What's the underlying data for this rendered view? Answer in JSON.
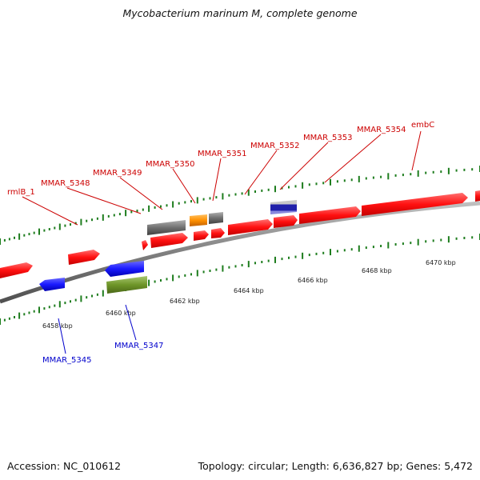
{
  "title": "Mycobacterium marinum M, complete genome",
  "footer": {
    "accession": "Accession: NC_010612",
    "summary": "Topology: circular; Length: 6,636,827 bp; Genes: 5,472"
  },
  "colors": {
    "forward_cds": "#ff1a1a",
    "reverse_cds": "#1a1aff",
    "gray_feature": "#707070",
    "orange_feature": "#ff9000",
    "olive_feature": "#6e9528",
    "axis_ticks": "#1e7d1e",
    "forward_label": "#cc0000",
    "reverse_label": "#0000cc"
  },
  "ticks": [
    "6458 kbp",
    "6460 kbp",
    "6462 kbp",
    "6464 kbp",
    "6466 kbp",
    "6468 kbp",
    "6470 kbp"
  ],
  "forward_labels": [
    "rmlB_1",
    "MMAR_5348",
    "MMAR_5349",
    "MMAR_5350",
    "MMAR_5351",
    "MMAR_5352",
    "MMAR_5353",
    "MMAR_5354",
    "embC"
  ],
  "reverse_labels": [
    "MMAR_5345",
    "MMAR_5347"
  ]
}
